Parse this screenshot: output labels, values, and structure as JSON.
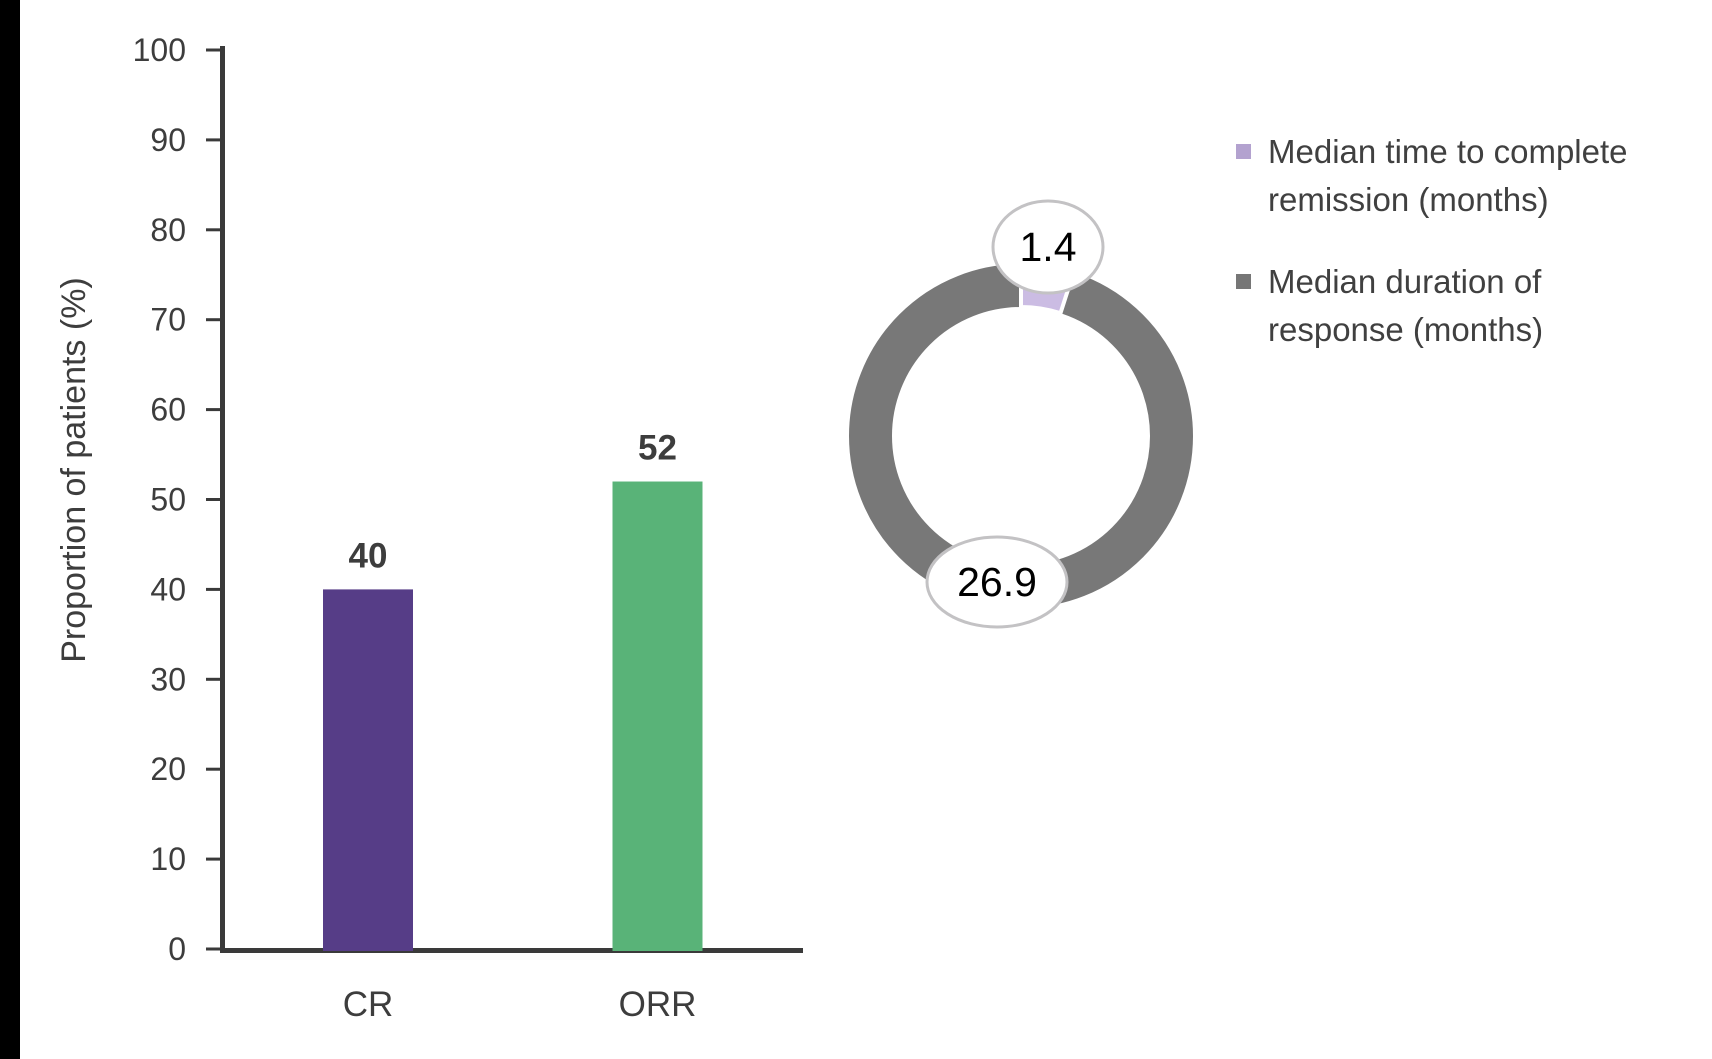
{
  "page": {
    "background": "#ffffff",
    "left_strip_color": "#000000"
  },
  "chart_data": [
    {
      "type": "bar",
      "title": "",
      "categories": [
        "CR",
        "ORR"
      ],
      "values": [
        40,
        52
      ],
      "value_labels": [
        "40",
        "52"
      ],
      "bar_colors": [
        "#563d87",
        "#59b378"
      ],
      "xlabel": "",
      "ylabel": "Proportion of patients (%)",
      "ylim": [
        0,
        100
      ],
      "yticks": [
        0,
        10,
        20,
        30,
        40,
        50,
        60,
        70,
        80,
        90,
        100
      ],
      "grid": false,
      "legend_position": "none",
      "axis_color": "#3a3a3a",
      "text_color": "#3d3d3d"
    },
    {
      "type": "pie",
      "subtype": "donut",
      "slices": [
        {
          "name": "Median time to complete remission (months)",
          "value": 1.4,
          "color": "#cbbce3",
          "callout_label": "1.4"
        },
        {
          "name": "Median duration of response (months)",
          "value": 26.9,
          "color": "#787878",
          "callout_label": "26.9"
        }
      ],
      "callout_fill": "#ffffff",
      "callout_border": "#c3c2c4",
      "callout_text_color": "#000000",
      "legend_position": "right"
    }
  ],
  "legend": {
    "items": [
      {
        "lines": [
          "Median time to complete",
          "remission (months)"
        ],
        "color": "#b3a2cf"
      },
      {
        "lines": [
          "Median duration of",
          "response (months)"
        ],
        "color": "#767676"
      }
    ]
  }
}
